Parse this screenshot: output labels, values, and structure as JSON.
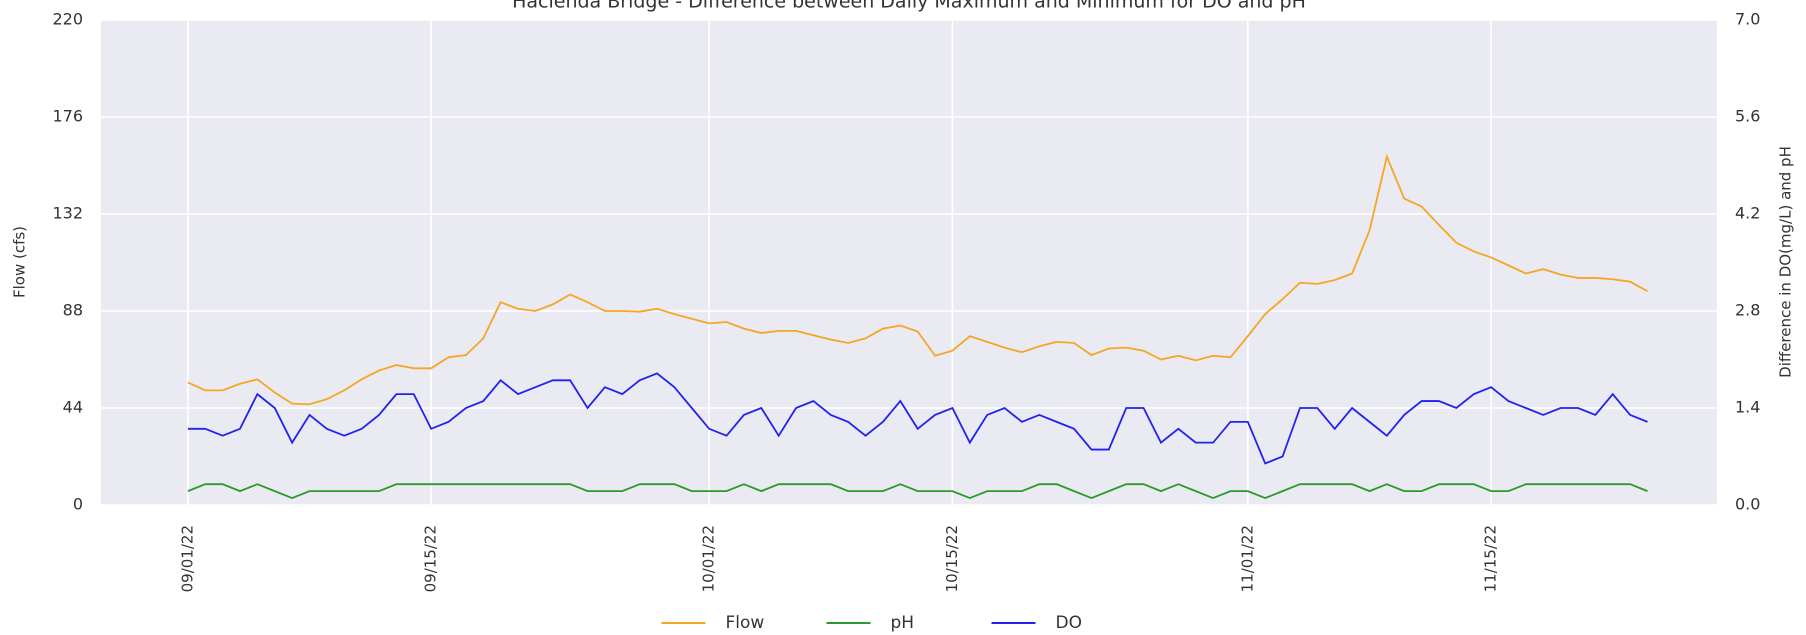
{
  "chart_data": {
    "type": "line",
    "title": "Hacienda Bridge - Difference between Daily Maximum and Minimum for DO and pH",
    "y_label": "Flow (cfs)",
    "y2_label": "Difference in DO(mg/L) and pH",
    "x": [
      "2022-09-01",
      "2022-09-02",
      "2022-09-03",
      "2022-09-04",
      "2022-09-05",
      "2022-09-06",
      "2022-09-07",
      "2022-09-08",
      "2022-09-09",
      "2022-09-10",
      "2022-09-11",
      "2022-09-12",
      "2022-09-13",
      "2022-09-14",
      "2022-09-15",
      "2022-09-16",
      "2022-09-17",
      "2022-09-18",
      "2022-09-19",
      "2022-09-20",
      "2022-09-21",
      "2022-09-22",
      "2022-09-23",
      "2022-09-24",
      "2022-09-25",
      "2022-09-26",
      "2022-09-27",
      "2022-09-28",
      "2022-09-29",
      "2022-09-30",
      "2022-10-01",
      "2022-10-02",
      "2022-10-03",
      "2022-10-04",
      "2022-10-05",
      "2022-10-06",
      "2022-10-07",
      "2022-10-08",
      "2022-10-09",
      "2022-10-10",
      "2022-10-11",
      "2022-10-12",
      "2022-10-13",
      "2022-10-14",
      "2022-10-15",
      "2022-10-16",
      "2022-10-17",
      "2022-10-18",
      "2022-10-19",
      "2022-10-20",
      "2022-10-21",
      "2022-10-22",
      "2022-10-23",
      "2022-10-24",
      "2022-10-25",
      "2022-10-26",
      "2022-10-27",
      "2022-10-28",
      "2022-10-29",
      "2022-10-30",
      "2022-10-31",
      "2022-11-01",
      "2022-11-02",
      "2022-11-03",
      "2022-11-04",
      "2022-11-05",
      "2022-11-06",
      "2022-11-07",
      "2022-11-08",
      "2022-11-09",
      "2022-11-10",
      "2022-11-11",
      "2022-11-12",
      "2022-11-13",
      "2022-11-14",
      "2022-11-15",
      "2022-11-16",
      "2022-11-17",
      "2022-11-18",
      "2022-11-19",
      "2022-11-20",
      "2022-11-21",
      "2022-11-22",
      "2022-11-23",
      "2022-11-24"
    ],
    "series": [
      {
        "name": "Flow",
        "color": "#f5a623",
        "axis": "y",
        "values": [
          55.6,
          52,
          52,
          55,
          57,
          51,
          46,
          45.7,
          48,
          52,
          57,
          61,
          63.5,
          62,
          62,
          67,
          68,
          75.6,
          92,
          89,
          88,
          91,
          95.5,
          92,
          88,
          88,
          87.7,
          89,
          86.6,
          84.5,
          82.4,
          83,
          80,
          78,
          79,
          79,
          77,
          75,
          73.5,
          75.6,
          80,
          81.4,
          78.7,
          67.7,
          70,
          76.6,
          74,
          71.4,
          69.3,
          72,
          74,
          73.5,
          68,
          71,
          71.4,
          70,
          66,
          67.7,
          65.6,
          67.7,
          67,
          76.6,
          86.6,
          93.4,
          100.8,
          100.3,
          102,
          105,
          124.4,
          158,
          139,
          135.4,
          127,
          119,
          115,
          112.3,
          108.7,
          105,
          107,
          104.5,
          103,
          103,
          102.4,
          101.3,
          97
        ]
      },
      {
        "name": "pH",
        "color": "#2a9a2a",
        "axis": "y2",
        "values": [
          0.2,
          0.3,
          0.3,
          0.2,
          0.3,
          0.2,
          0.1,
          0.2,
          0.2,
          0.2,
          0.2,
          0.2,
          0.3,
          0.3,
          0.3,
          0.3,
          0.3,
          0.3,
          0.3,
          0.3,
          0.3,
          0.3,
          0.3,
          0.2,
          0.2,
          0.2,
          0.3,
          0.3,
          0.3,
          0.2,
          0.2,
          0.2,
          0.3,
          0.2,
          0.3,
          0.3,
          0.3,
          0.3,
          0.2,
          0.2,
          0.2,
          0.3,
          0.2,
          0.2,
          0.2,
          0.1,
          0.2,
          0.2,
          0.2,
          0.3,
          0.3,
          0.2,
          0.1,
          0.2,
          0.3,
          0.3,
          0.2,
          0.3,
          0.2,
          0.1,
          0.2,
          0.2,
          0.1,
          0.2,
          0.3,
          0.3,
          0.3,
          0.3,
          0.2,
          0.3,
          0.2,
          0.2,
          0.3,
          0.3,
          0.3,
          0.2,
          0.2,
          0.3,
          0.3,
          0.3,
          0.3,
          0.3,
          0.3,
          0.3,
          0.2
        ]
      },
      {
        "name": "DO",
        "color": "#2222ee",
        "axis": "y2",
        "values": [
          1.1,
          1.1,
          1.0,
          1.1,
          1.6,
          1.4,
          0.9,
          1.3,
          1.1,
          1.0,
          1.1,
          1.3,
          1.6,
          1.6,
          1.1,
          1.2,
          1.4,
          1.5,
          1.8,
          1.6,
          1.7,
          1.8,
          1.8,
          1.4,
          1.7,
          1.6,
          1.8,
          1.9,
          1.7,
          1.4,
          1.1,
          1.0,
          1.3,
          1.4,
          1.0,
          1.4,
          1.5,
          1.3,
          1.2,
          1.0,
          1.2,
          1.5,
          1.1,
          1.3,
          1.4,
          0.9,
          1.3,
          1.4,
          1.2,
          1.3,
          1.2,
          1.1,
          0.8,
          0.8,
          1.4,
          1.4,
          0.9,
          1.1,
          0.9,
          0.9,
          1.2,
          1.2,
          0.6,
          0.7,
          1.4,
          1.4,
          1.1,
          1.4,
          1.2,
          1.0,
          1.3,
          1.5,
          1.5,
          1.4,
          1.6,
          1.7,
          1.5,
          1.4,
          1.3,
          1.4,
          1.4,
          1.3,
          1.6,
          1.3,
          1.2
        ]
      }
    ],
    "xlim": [
      "2022-08-27",
      "2022-11-28"
    ],
    "xticks": [
      {
        "value": "2022-09-01",
        "label": "09/01/22"
      },
      {
        "value": "2022-09-15",
        "label": "09/15/22"
      },
      {
        "value": "2022-10-01",
        "label": "10/01/22"
      },
      {
        "value": "2022-10-15",
        "label": "10/15/22"
      },
      {
        "value": "2022-11-01",
        "label": "11/01/22"
      },
      {
        "value": "2022-11-15",
        "label": "11/15/22"
      }
    ],
    "ylim": [
      0,
      220
    ],
    "yticks": [
      0,
      44,
      88,
      132,
      176,
      220
    ],
    "y2lim": [
      0,
      7
    ],
    "y2ticks": [
      {
        "value": 0,
        "label": "0.0"
      },
      1.4,
      2.8,
      4.2,
      5.6,
      {
        "value": 7,
        "label": "7.0"
      }
    ],
    "grid": true,
    "legend": "bottom"
  }
}
